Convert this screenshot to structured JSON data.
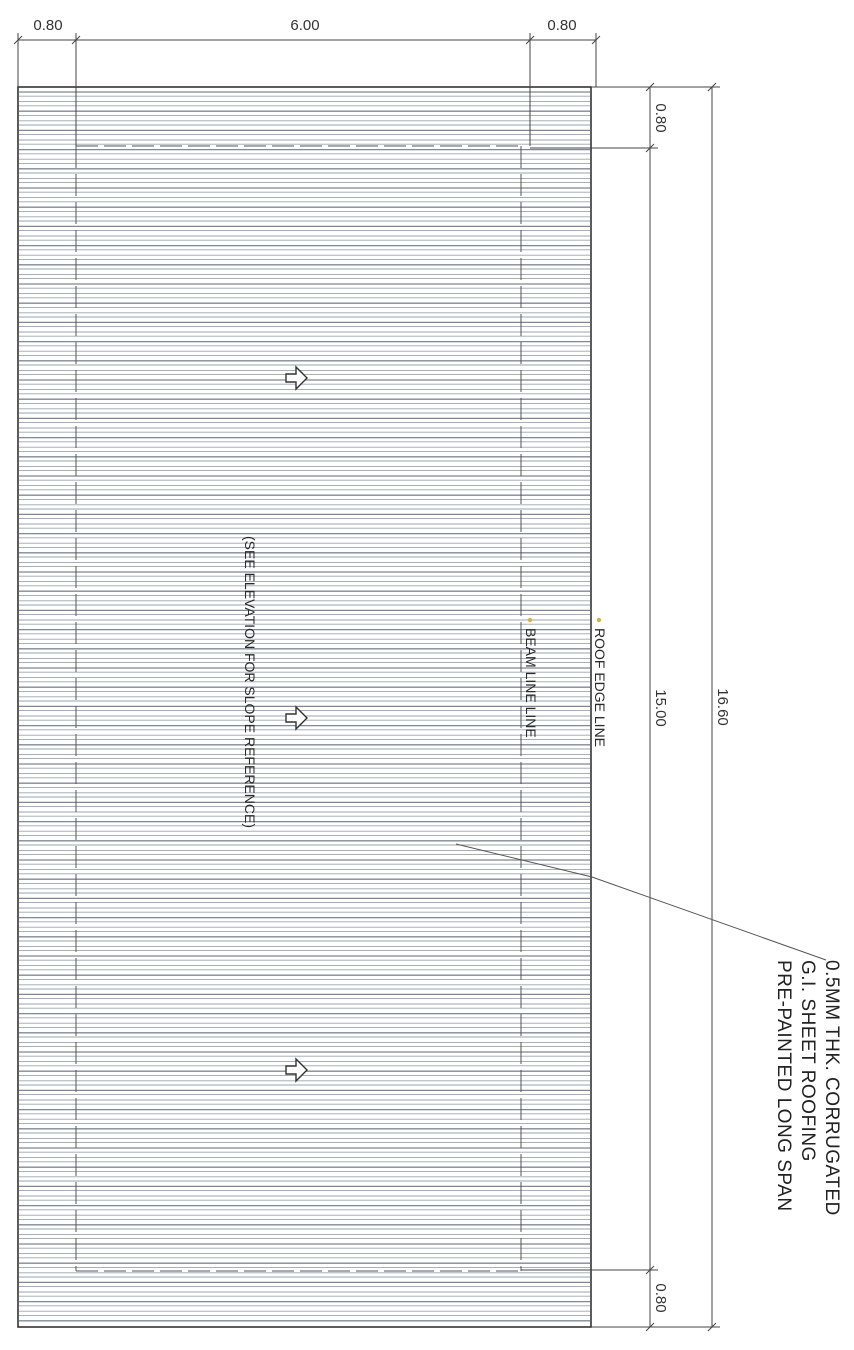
{
  "dimensions": {
    "top_left_overhang": "0.80",
    "top_span": "6.00",
    "top_right_overhang": "0.80",
    "right_top_overhang": "0.80",
    "right_span": "15.00",
    "right_bottom_overhang": "0.80",
    "overall_length": "16.60"
  },
  "labels": {
    "roof_edge_line": "ROOF EDGE LINE",
    "beam_line": "BEAM LINE LINE",
    "slope_note": "(SEE ELEVATION FOR SLOPE REFERENCE)"
  },
  "callout": {
    "lines": [
      "0.5MM THK. CORRUGATED",
      "G.I. SHEET ROOFING",
      "PRE-PAINTED LONG SPAN"
    ]
  },
  "slope_arrows": 3,
  "colors": {
    "sheet_stroke": "#9aa3ae",
    "outline": "#333333",
    "leader_marker": "#d8b04a"
  }
}
